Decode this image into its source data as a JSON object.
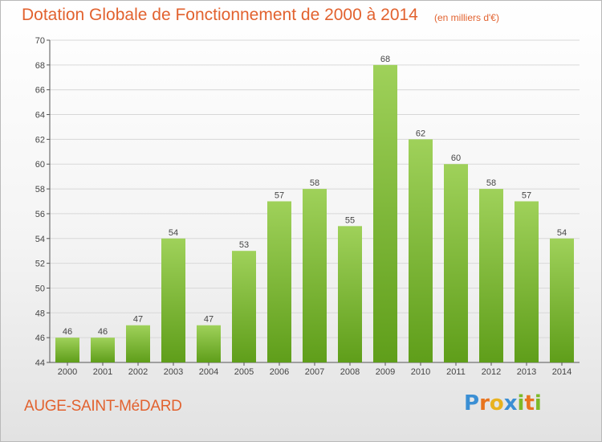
{
  "title": "Dotation Globale de Fonctionnement de 2000 à 2014",
  "unit_note": "(en milliers d'€)",
  "commune": "AUGE-SAINT-MéDARD",
  "logo": {
    "text": "Proxiti",
    "letters": [
      "P",
      "r",
      "o",
      "x",
      "i",
      "t",
      "i"
    ],
    "colors": [
      "#3b8fd4",
      "#e8741e",
      "#e8b21e",
      "#3b8fd4",
      "#7cb928",
      "#e8741e",
      "#7cb928"
    ]
  },
  "colors": {
    "text_accent": "#e2622f",
    "bar_top": "#9fd15a",
    "bar_bottom": "#5f9e1a",
    "grid": "#d8d8d8"
  },
  "chart_data": {
    "type": "bar",
    "title": "Dotation Globale de Fonctionnement de 2000 à 2014",
    "subtitle": "(en milliers d'€)",
    "categories": [
      "2000",
      "2001",
      "2002",
      "2003",
      "2004",
      "2005",
      "2006",
      "2007",
      "2008",
      "2009",
      "2010",
      "2011",
      "2012",
      "2013",
      "2014"
    ],
    "values": [
      46,
      46,
      47,
      54,
      47,
      53,
      57,
      58,
      55,
      68,
      62,
      60,
      58,
      57,
      54
    ],
    "data_labels": [
      "46",
      "46",
      "47",
      "54",
      "47",
      "53",
      "57",
      "58",
      "55",
      "68",
      "62",
      "60",
      "58",
      "57",
      "54"
    ],
    "ylim": [
      44,
      70
    ],
    "yticks": [
      "44",
      "46",
      "48",
      "50",
      "52",
      "54",
      "56",
      "58",
      "60",
      "62",
      "64",
      "66",
      "68",
      "70"
    ],
    "grid": true,
    "xlabel": "",
    "ylabel": ""
  }
}
